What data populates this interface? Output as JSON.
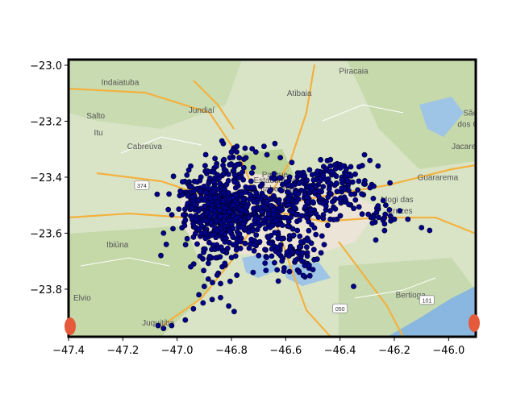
{
  "chart_data": {
    "type": "scatter",
    "title": "",
    "xlabel": "",
    "ylabel": "",
    "xlim": [
      -47.4,
      -45.9
    ],
    "ylim": [
      -23.97,
      -22.98
    ],
    "x_ticks": [
      {
        "value": -47.4,
        "label": "−47.4"
      },
      {
        "value": -47.2,
        "label": "−47.2"
      },
      {
        "value": -47.0,
        "label": "−47.0"
      },
      {
        "value": -46.8,
        "label": "−46.8"
      },
      {
        "value": -46.6,
        "label": "−46.6"
      },
      {
        "value": -46.4,
        "label": "−46.4"
      },
      {
        "value": -46.2,
        "label": "−46.2"
      },
      {
        "value": -46.0,
        "label": "−46.0"
      }
    ],
    "y_ticks": [
      {
        "value": -23.0,
        "label": "−23.0"
      },
      {
        "value": -23.2,
        "label": "−23.2"
      },
      {
        "value": -23.4,
        "label": "−23.4"
      },
      {
        "value": -23.6,
        "label": "−23.6"
      },
      {
        "value": -23.8,
        "label": "−23.8"
      }
    ],
    "marker_color": "#00008b",
    "grid": false,
    "clusters": [
      {
        "cx": -46.83,
        "cy": -23.53,
        "sx": 0.07,
        "sy": 0.06,
        "n": 420
      },
      {
        "cx": -46.5,
        "cy": -23.46,
        "sx": 0.09,
        "sy": 0.05,
        "n": 220
      },
      {
        "cx": -46.65,
        "cy": -23.52,
        "sx": 0.06,
        "sy": 0.04,
        "n": 120
      },
      {
        "cx": -46.6,
        "cy": -23.66,
        "sx": 0.06,
        "sy": 0.05,
        "n": 110
      },
      {
        "cx": -46.93,
        "cy": -23.47,
        "sx": 0.04,
        "sy": 0.05,
        "n": 60
      },
      {
        "cx": -46.8,
        "cy": -23.38,
        "sx": 0.05,
        "sy": 0.05,
        "n": 60
      },
      {
        "cx": -46.25,
        "cy": -23.53,
        "sx": 0.04,
        "sy": 0.03,
        "n": 25
      },
      {
        "cx": -46.85,
        "cy": -23.68,
        "sx": 0.04,
        "sy": 0.06,
        "n": 40
      },
      {
        "cx": -46.38,
        "cy": -23.4,
        "sx": 0.04,
        "sy": 0.03,
        "n": 40
      }
    ],
    "scattered_points": [
      {
        "x": -47.07,
        "y": -23.93
      },
      {
        "x": -47.02,
        "y": -23.93
      },
      {
        "x": -47.05,
        "y": -23.94
      },
      {
        "x": -46.97,
        "y": -23.91
      },
      {
        "x": -46.94,
        "y": -23.87
      },
      {
        "x": -46.92,
        "y": -23.82
      },
      {
        "x": -46.9,
        "y": -23.79
      },
      {
        "x": -46.79,
        "y": -23.88
      },
      {
        "x": -46.81,
        "y": -23.86
      },
      {
        "x": -46.84,
        "y": -23.83
      },
      {
        "x": -46.84,
        "y": -23.78
      },
      {
        "x": -46.71,
        "y": -23.31
      },
      {
        "x": -46.68,
        "y": -23.29
      },
      {
        "x": -46.64,
        "y": -23.28
      },
      {
        "x": -46.62,
        "y": -23.33
      },
      {
        "x": -46.83,
        "y": -23.28
      },
      {
        "x": -46.8,
        "y": -23.31
      },
      {
        "x": -46.78,
        "y": -23.29
      },
      {
        "x": -46.31,
        "y": -23.32
      },
      {
        "x": -46.29,
        "y": -23.34
      },
      {
        "x": -46.26,
        "y": -23.36
      },
      {
        "x": -46.39,
        "y": -23.36
      },
      {
        "x": -46.38,
        "y": -23.48
      },
      {
        "x": -46.32,
        "y": -23.46
      },
      {
        "x": -46.1,
        "y": -23.58
      },
      {
        "x": -46.07,
        "y": -23.59
      },
      {
        "x": -46.35,
        "y": -23.79
      },
      {
        "x": -47.03,
        "y": -23.46
      },
      {
        "x": -47.05,
        "y": -23.6
      },
      {
        "x": -47.04,
        "y": -23.64
      },
      {
        "x": -47.06,
        "y": -23.68
      },
      {
        "x": -46.95,
        "y": -23.72
      },
      {
        "x": -46.72,
        "y": -23.74
      },
      {
        "x": -46.7,
        "y": -23.68
      },
      {
        "x": -46.54,
        "y": -23.7
      },
      {
        "x": -46.5,
        "y": -23.73
      },
      {
        "x": -46.47,
        "y": -23.67
      },
      {
        "x": -46.2,
        "y": -23.55
      },
      {
        "x": -46.18,
        "y": -23.52
      },
      {
        "x": -46.15,
        "y": -23.55
      },
      {
        "x": -46.43,
        "y": -23.38
      },
      {
        "x": -46.44,
        "y": -23.42
      }
    ],
    "map_labels": [
      {
        "text": "Indaiatuba",
        "x": -47.21,
        "y": -23.07
      },
      {
        "text": "Atibaia",
        "x": -46.55,
        "y": -23.11
      },
      {
        "text": "Piracaia",
        "x": -46.35,
        "y": -23.03
      },
      {
        "text": "Jundiaí",
        "x": -46.91,
        "y": -23.17
      },
      {
        "text": "Salto",
        "x": -47.3,
        "y": -23.19
      },
      {
        "text": "Itu",
        "x": -47.29,
        "y": -23.25
      },
      {
        "text": "Cabreúva",
        "x": -47.12,
        "y": -23.3
      },
      {
        "text": "Parque",
        "x": -46.64,
        "y": -23.4
      },
      {
        "text": "Estadual da",
        "x": -46.64,
        "y": -23.42
      },
      {
        "text": "Itaberaba",
        "x": -46.63,
        "y": -23.45
      },
      {
        "text": "Mogi das",
        "x": -46.19,
        "y": -23.49
      },
      {
        "text": "Cruzes",
        "x": -46.18,
        "y": -23.53
      },
      {
        "text": "Guararema",
        "x": -46.04,
        "y": -23.41
      },
      {
        "text": "Jacareí",
        "x": -45.94,
        "y": -23.3
      },
      {
        "text": "São",
        "x": -45.92,
        "y": -23.18
      },
      {
        "text": "dos Ca",
        "x": -45.92,
        "y": -23.22
      },
      {
        "text": "Ibiúna",
        "x": -47.22,
        "y": -23.65
      },
      {
        "text": "Elvio",
        "x": -47.35,
        "y": -23.84
      },
      {
        "text": "Juquitiba",
        "x": -47.07,
        "y": -23.93
      },
      {
        "text": "Bertioga",
        "x": -46.14,
        "y": -23.83
      }
    ],
    "road_shields": [
      {
        "text": "374",
        "x": -47.13,
        "y": -23.43
      },
      {
        "text": "050",
        "x": -46.4,
        "y": -23.87
      },
      {
        "text": "101",
        "x": -46.08,
        "y": -23.84
      }
    ]
  }
}
